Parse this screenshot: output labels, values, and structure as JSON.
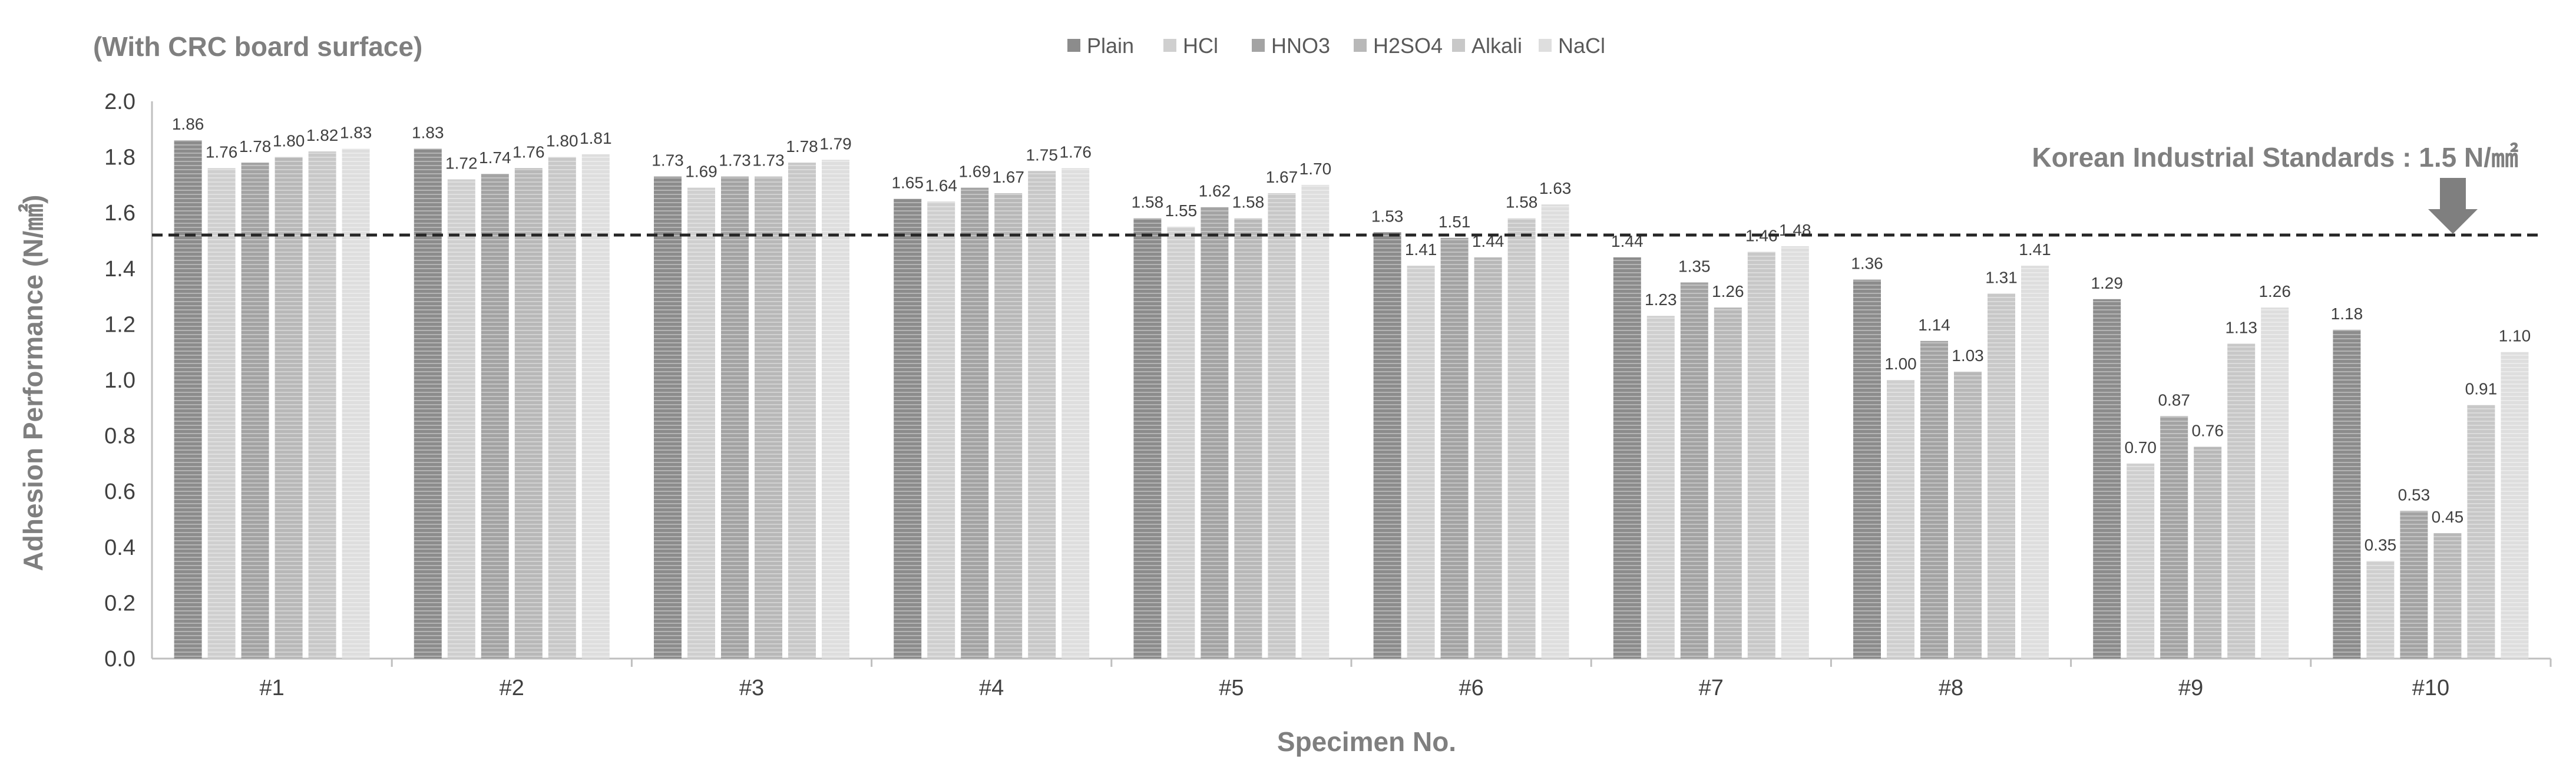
{
  "chart_data": {
    "type": "bar",
    "title": "(With CRC board surface)",
    "xlabel": "Specimen No.",
    "ylabel": "Adhesion Performance (N/㎟)",
    "ylim": [
      0,
      2.0
    ],
    "yticks": [
      0.0,
      0.2,
      0.4,
      0.6,
      0.8,
      1.0,
      1.2,
      1.4,
      1.6,
      1.8,
      2.0
    ],
    "ytick_labels": [
      "0.0",
      "0.2",
      "0.4",
      "0.6",
      "0.8",
      "1.0",
      "1.2",
      "1.4",
      "1.6",
      "1.8",
      "2.0"
    ],
    "grid": false,
    "legend_position": "top-center",
    "categories": [
      "#1",
      "#2",
      "#3",
      "#4",
      "#5",
      "#6",
      "#7",
      "#8",
      "#9",
      "#10"
    ],
    "series": [
      {
        "name": "Plain",
        "color": "#8c8c8c",
        "values": [
          1.86,
          1.83,
          1.73,
          1.65,
          1.58,
          1.53,
          1.44,
          1.36,
          1.29,
          1.18
        ],
        "labels": [
          "1.86",
          "1.83",
          "1.73",
          "1.65",
          "1.58",
          "1.53",
          "1.44",
          "1.36",
          "1.29",
          "1.18"
        ]
      },
      {
        "name": "HCl",
        "color": "#cfcfcf",
        "values": [
          1.76,
          1.72,
          1.69,
          1.64,
          1.55,
          1.41,
          1.23,
          1.0,
          0.7,
          0.35
        ],
        "labels": [
          "1.76",
          "1.72",
          "1.69",
          "1.64",
          "1.55",
          "1.41",
          "1.23",
          "1.00",
          "0.70",
          "0.35"
        ]
      },
      {
        "name": "HNO3",
        "color": "#a3a3a3",
        "values": [
          1.78,
          1.74,
          1.73,
          1.69,
          1.62,
          1.51,
          1.35,
          1.14,
          0.87,
          0.53
        ],
        "labels": [
          "1.78",
          "1.74",
          "1.73",
          "1.69",
          "1.62",
          "1.51",
          "1.35",
          "1.14",
          "0.87",
          "0.53"
        ]
      },
      {
        "name": "H2SO4",
        "color": "#b8b8b8",
        "values": [
          1.8,
          1.76,
          1.73,
          1.67,
          1.58,
          1.44,
          1.26,
          1.03,
          0.76,
          0.45
        ],
        "labels": [
          "1.80",
          "1.76",
          "1.73",
          "1.67",
          "1.58",
          "1.44",
          "1.26",
          "1.03",
          "0.76",
          "0.45"
        ]
      },
      {
        "name": "Alkali",
        "color": "#c8c8c8",
        "values": [
          1.82,
          1.8,
          1.78,
          1.75,
          1.67,
          1.58,
          1.46,
          1.31,
          1.13,
          0.91
        ],
        "labels": [
          "1.82",
          "1.80",
          "1.78",
          "1.75",
          "1.67",
          "1.58",
          "1.46",
          "1.31",
          "1.13",
          "0.91"
        ]
      },
      {
        "name": "NaCl",
        "color": "#dedede",
        "values": [
          1.83,
          1.81,
          1.79,
          1.76,
          1.7,
          1.63,
          1.48,
          1.41,
          1.26,
          1.1
        ],
        "labels": [
          "1.83",
          "1.81",
          "1.79",
          "1.76",
          "1.70",
          "1.63",
          "1.48",
          "1.41",
          "1.26",
          "1.10"
        ]
      }
    ],
    "reference_line": {
      "value": 1.52,
      "style": "dashed",
      "label": "Korean Industrial Standards : 1.5 N/㎟"
    }
  }
}
